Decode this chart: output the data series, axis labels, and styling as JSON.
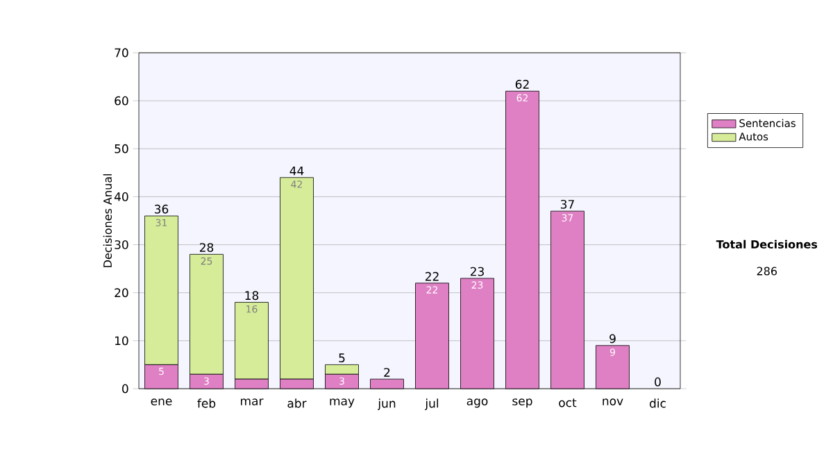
{
  "chart_data": {
    "type": "bar",
    "stacked": true,
    "ylabel": "Decisiones Anual",
    "categories": [
      "ene",
      "feb",
      "mar",
      "abr",
      "may",
      "jun",
      "jul",
      "ago",
      "sep",
      "oct",
      "nov",
      "dic"
    ],
    "series": [
      {
        "name": "Sentencias",
        "color": "#df7fc4",
        "values": [
          5,
          3,
          2,
          2,
          3,
          2,
          22,
          23,
          62,
          37,
          9,
          0
        ],
        "value_labels": [
          "5",
          "3",
          null,
          null,
          "3",
          null,
          "22",
          "23",
          "62",
          "37",
          "9",
          null
        ]
      },
      {
        "name": "Autos",
        "color": "#d6ec98",
        "values": [
          31,
          25,
          16,
          42,
          2,
          0,
          0,
          0,
          0,
          0,
          0,
          0
        ],
        "value_labels": [
          "31",
          "25",
          "16",
          "42",
          null,
          null,
          null,
          null,
          null,
          null,
          null,
          null
        ]
      }
    ],
    "totals": [
      "36",
      "28",
      "18",
      "44",
      "5",
      "2",
      "22",
      "23",
      "62",
      "37",
      "9",
      "0"
    ],
    "ylim": [
      0,
      70
    ],
    "yticks": [
      0,
      10,
      20,
      30,
      40,
      50,
      60,
      70
    ],
    "grid": "y",
    "legend": "right",
    "annotations": [
      "Total Decisiones",
      "286"
    ]
  }
}
